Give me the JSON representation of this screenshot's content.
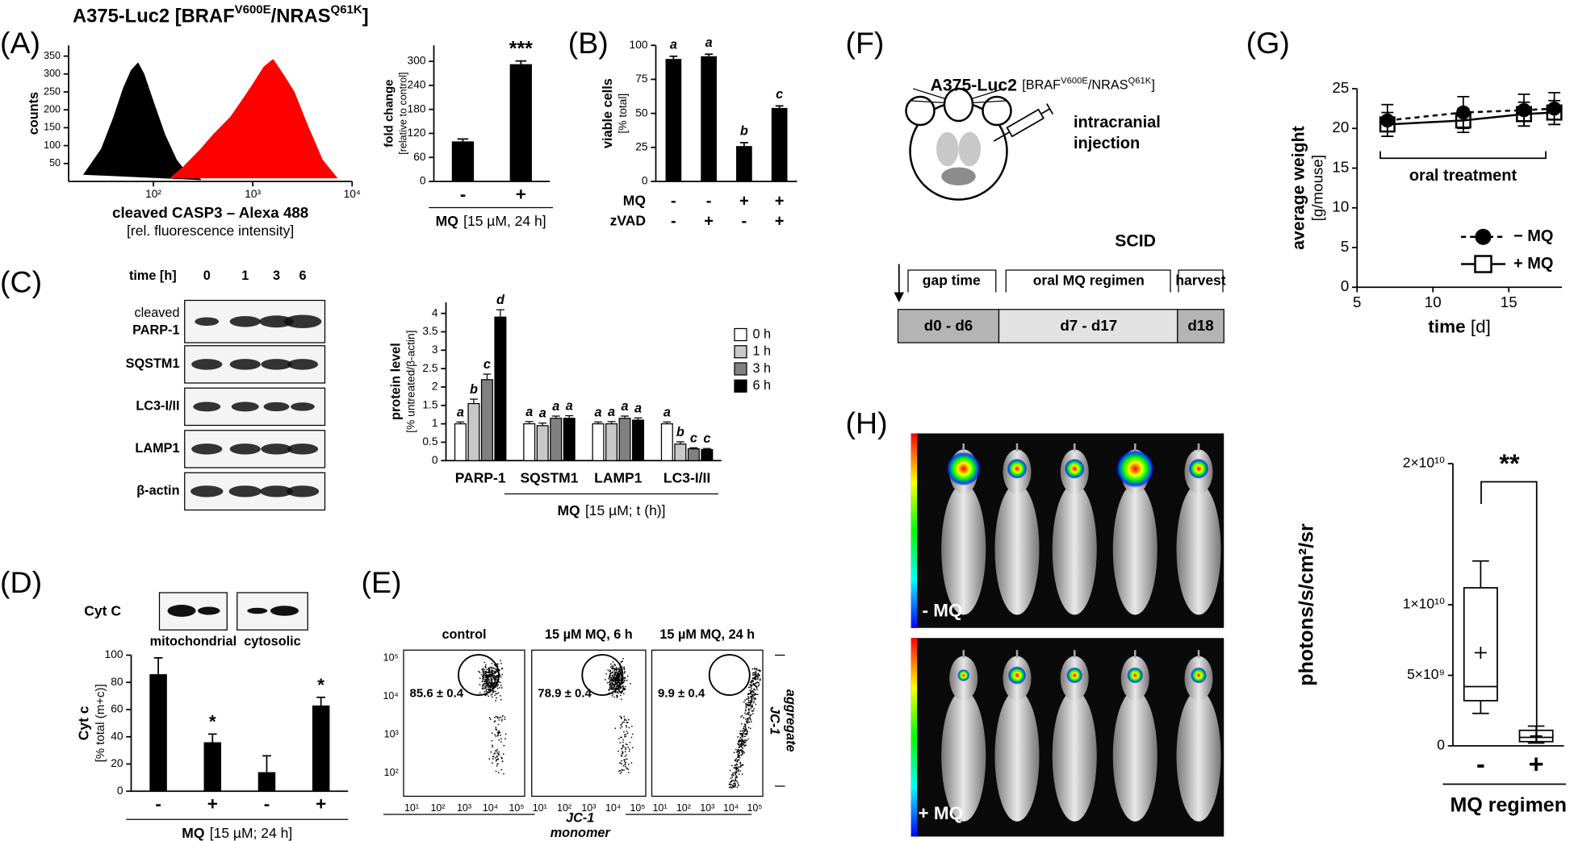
{
  "header": {
    "cell": "A375-Luc2 [BRAF",
    "mut1": "V600E",
    "sep": "/NRAS",
    "mut2": "Q61K",
    "close": "]"
  },
  "panel_labels": [
    "(A)",
    "(B)",
    "(C)",
    "(D)",
    "(E)",
    "(F)",
    "(G)",
    "(H)"
  ],
  "chart_data": [
    {
      "type": "area",
      "y_label": "counts",
      "x_label": "cleaved CASP3 – Alexa 488",
      "x_label_sub": "[rel. fluorescence intensity]",
      "log_x": true,
      "xlim": [
        14,
        10000
      ],
      "xticks": [
        {
          "value": 100,
          "label": "10²"
        },
        {
          "value": 1000,
          "label": "10³"
        },
        {
          "value": 10000,
          "label": "10⁴"
        }
      ],
      "ylim": [
        0,
        380
      ],
      "yticks": [
        50,
        100,
        150,
        200,
        250,
        300,
        350
      ],
      "series": [
        {
          "color": "#000000",
          "x": [
            20,
            30,
            40,
            50,
            60,
            70,
            80,
            100,
            130,
            170,
            220,
            300
          ],
          "values": [
            20,
            90,
            180,
            260,
            310,
            330,
            300,
            220,
            130,
            60,
            20,
            5
          ]
        },
        {
          "color": "#ff0000",
          "x": [
            150,
            200,
            300,
            400,
            600,
            800,
            1000,
            1300,
            1600,
            2000,
            2600,
            3500,
            5000,
            7000
          ],
          "values": [
            10,
            40,
            90,
            130,
            180,
            230,
            270,
            320,
            340,
            300,
            250,
            160,
            60,
            10
          ]
        }
      ]
    },
    {
      "type": "bar",
      "y_label": "fold change",
      "y_label_sub": "[relative to control]",
      "categories": [
        "-",
        "+"
      ],
      "values": [
        100,
        293
      ],
      "errors": [
        6,
        8
      ],
      "annotations": [
        null,
        "***"
      ],
      "color": "#000000",
      "ylim": [
        0,
        340
      ],
      "yticks": [
        0,
        60,
        120,
        180,
        240,
        300
      ],
      "x_label_bold": "MQ",
      "x_label": "[15 µM, 24 h]"
    },
    {
      "type": "bar",
      "y_label": "viable cells",
      "y_label_sub": "[% total]",
      "values": [
        90,
        92,
        26,
        54
      ],
      "errors": [
        2,
        1.5,
        2.5,
        1.5
      ],
      "annotations": [
        "a",
        "a",
        "b",
        "c"
      ],
      "color": "#000000",
      "ylim": [
        0,
        100
      ],
      "yticks": [
        0,
        25,
        50,
        75,
        100
      ],
      "conditions": [
        {
          "name": "MQ",
          "values": [
            "-",
            "-",
            "+",
            "+"
          ]
        },
        {
          "name": "zVAD",
          "values": [
            "-",
            "+",
            "-",
            "+"
          ]
        }
      ]
    },
    {
      "type": "bar",
      "y_label": "protein level",
      "y_label_sub": "[% untreated/β-actin]",
      "categories": [
        "PARP-1",
        "SQSTM1",
        "LAMP1",
        "LC3-I/II"
      ],
      "x_label_bold": "MQ",
      "x_label": "[15 µM; t (h)]",
      "ylim": [
        0,
        4.3
      ],
      "yticks": [
        0,
        0.5,
        1,
        1.5,
        2,
        2.5,
        3,
        3.5,
        4
      ],
      "series": [
        {
          "name": "0 h",
          "color": "#ffffff",
          "values": [
            1,
            1,
            1,
            1
          ],
          "errors": [
            0.05,
            0.06,
            0.05,
            0.05
          ],
          "letters": [
            "a",
            "a",
            "a",
            "a"
          ]
        },
        {
          "name": "1 h",
          "color": "#c8c8c8",
          "values": [
            1.55,
            0.95,
            1,
            0.45
          ],
          "errors": [
            0.12,
            0.07,
            0.06,
            0.06
          ],
          "letters": [
            "b",
            "a",
            "a",
            "b"
          ]
        },
        {
          "name": "3 h",
          "color": "#808080",
          "values": [
            2.2,
            1.15,
            1.15,
            0.32
          ],
          "errors": [
            0.15,
            0.06,
            0.06,
            0.03
          ],
          "letters": [
            "c",
            "a",
            "a",
            "c"
          ]
        },
        {
          "name": "6 h",
          "color": "#000000",
          "values": [
            3.9,
            1.15,
            1.1,
            0.3
          ],
          "errors": [
            0.2,
            0.07,
            0.06,
            0.03
          ],
          "letters": [
            "d",
            "a",
            "a",
            "c"
          ]
        }
      ]
    },
    {
      "type": "bar",
      "y_label": "Cyt c",
      "y_label_sub": "[% total (m+c)]",
      "categories": [
        "-",
        "+",
        "-",
        "+"
      ],
      "values": [
        86,
        36,
        14,
        63
      ],
      "errors": [
        12,
        6,
        12,
        6
      ],
      "annotations": [
        null,
        "*",
        null,
        "*"
      ],
      "color": "#000000",
      "ylim": [
        0,
        100
      ],
      "yticks": [
        0,
        20,
        40,
        60,
        80,
        100
      ],
      "x_label_bold": "MQ",
      "x_label": "[15 µM; 24 h]"
    },
    {
      "type": "line",
      "y_label": "average weight",
      "y_label_sub": "[g/mouse]",
      "x_label_bold": "time",
      "x_label": "[d]",
      "annotation": "oral treatment",
      "xlim": [
        5,
        18.5
      ],
      "xticks": [
        5,
        10,
        15
      ],
      "ylim": [
        0,
        25
      ],
      "yticks": [
        0,
        5,
        10,
        15,
        20,
        25
      ],
      "x": [
        7,
        12,
        16,
        18
      ],
      "series": [
        {
          "name": "− MQ",
          "marker": "circle",
          "dash": true,
          "color": "#000000",
          "values": [
            21,
            22,
            22.3,
            22.5
          ],
          "errors": [
            2,
            2,
            2,
            2
          ]
        },
        {
          "name": "+ MQ",
          "marker": "square",
          "dash": false,
          "color": "#000000",
          "values": [
            20.5,
            21,
            21.8,
            22
          ],
          "errors": [
            1.5,
            1.5,
            1.5,
            1.5
          ]
        }
      ]
    },
    {
      "type": "box",
      "y_label": "photons/s/cm²/sr",
      "x_label": "MQ regimen",
      "categories": [
        "-",
        "+"
      ],
      "annotation": "**",
      "ylim": [
        0,
        20000000000
      ],
      "yticks": [
        0,
        {
          "value": 5000000000,
          "label": "5×10⁹"
        },
        {
          "value": 10000000000,
          "label": "1×10¹⁰"
        },
        {
          "value": 20000000000,
          "label": "2×10¹⁰"
        }
      ],
      "boxes": [
        {
          "min": 2300000000,
          "q1": 3200000000,
          "median": 4200000000,
          "q3": 11200000000,
          "max": 13100000000,
          "mean": 6600000000
        },
        {
          "min": 200000000,
          "q1": 300000000,
          "median": 600000000,
          "q3": 1100000000,
          "max": 1400000000,
          "mean": 700000000
        }
      ]
    }
  ],
  "blots": {
    "time_label": "time [h]",
    "times": [
      "0",
      "1",
      "3",
      "6"
    ],
    "parp_label": [
      "cleaved",
      "PARP-1"
    ],
    "rows": [
      "SQSTM1",
      "LC3-I/II",
      "LAMP1",
      "β-actin"
    ]
  },
  "cytc_blot": {
    "label": "Cyt C",
    "fractions": [
      "mitochondrial",
      "cytosolic"
    ]
  },
  "flow": {
    "titles": [
      "control",
      "15 µM MQ, 6 h",
      "15 µM MQ, 24 h"
    ],
    "percent": [
      "85.6 ± 0.4",
      "78.9 ± 0.4",
      "9.9 ± 0.4"
    ],
    "xticks": [
      "10¹",
      "10²",
      "10³",
      "10⁴",
      "10⁵"
    ],
    "yticks": [
      "10⁵",
      "10⁴",
      "10³",
      "10²"
    ],
    "x_label": [
      "JC-1",
      "monomer"
    ],
    "y_label": [
      "JC-1",
      "aggregate"
    ]
  },
  "diagram": {
    "cell": "A375-Luc2",
    "mut_open": "[BRAF",
    "mut1": "V600E",
    "sep": "/NRAS",
    "mut2": "Q61K",
    "close": "]",
    "injection": [
      "intracranial",
      "injection"
    ],
    "strain": "SCID",
    "timeline": [
      {
        "phase": "gap time",
        "days": "d0 - d6"
      },
      {
        "phase": "oral MQ regimen",
        "days": "d7 - d17"
      },
      {
        "phase": "harvest",
        "days": "d18"
      }
    ]
  },
  "imaging": {
    "groups": [
      "- MQ",
      "+ MQ"
    ]
  }
}
